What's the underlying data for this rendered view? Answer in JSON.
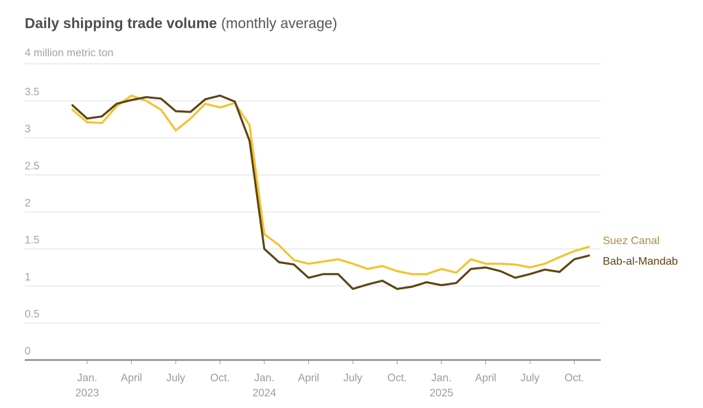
{
  "header": {
    "title": "Daily shipping trade volume",
    "subtitle": "(monthly average)"
  },
  "chart_data": {
    "type": "line",
    "title": "Daily shipping trade volume (monthly average)",
    "unit_label": "4 million metric ton",
    "ylabel": "million metric ton",
    "ylim": [
      0,
      4
    ],
    "y_tick_step": 0.5,
    "grid": true,
    "legend_position": "right-end-labels",
    "x": [
      "Dec. 2022",
      "Jan. 2023",
      "Feb. 2023",
      "March 2023",
      "April 2023",
      "May 2023",
      "June 2023",
      "July 2023",
      "Aug. 2023",
      "Sep. 2023",
      "Oct. 2023",
      "Nov. 2023",
      "Dec. 2023",
      "Jan. 2024",
      "Feb. 2024",
      "March 2024",
      "April 2024",
      "May 2024",
      "June 2024",
      "July 2024",
      "Aug. 2024",
      "Sep. 2024",
      "Oct. 2024",
      "Nov. 2024",
      "Dec. 2024",
      "Jan. 2025",
      "Feb. 2025",
      "March 2025",
      "April 2025",
      "May 2025",
      "June 2025",
      "July 2025",
      "Aug. 2025",
      "Sep. 2025",
      "Oct. 2025",
      "Nov. 2025"
    ],
    "series": [
      {
        "name": "Suez Canal",
        "color": "#F5C12B",
        "label_color": "#AF8D3D",
        "values": [
          3.38,
          3.21,
          3.2,
          3.43,
          3.57,
          3.5,
          3.38,
          3.1,
          3.26,
          3.46,
          3.41,
          3.47,
          3.17,
          1.7,
          1.55,
          1.35,
          1.3,
          1.33,
          1.36,
          1.3,
          1.23,
          1.27,
          1.2,
          1.16,
          1.16,
          1.23,
          1.18,
          1.36,
          1.3,
          1.3,
          1.29,
          1.25,
          1.3,
          1.39,
          1.47,
          1.53
        ]
      },
      {
        "name": "Bab-al-Mandab",
        "color": "#5E4312",
        "label_color": "#5E4312",
        "values": [
          3.44,
          3.26,
          3.29,
          3.46,
          3.51,
          3.55,
          3.53,
          3.36,
          3.35,
          3.52,
          3.57,
          3.49,
          2.96,
          1.5,
          1.32,
          1.29,
          1.11,
          1.16,
          1.16,
          0.96,
          1.02,
          1.07,
          0.96,
          0.99,
          1.05,
          1.01,
          1.04,
          1.23,
          1.25,
          1.2,
          1.11,
          1.16,
          1.22,
          1.19,
          1.36,
          1.41
        ]
      }
    ],
    "y_ticks": [
      {
        "value": 4.0,
        "label": ""
      },
      {
        "value": 3.5,
        "label": "3.5"
      },
      {
        "value": 3.0,
        "label": "3"
      },
      {
        "value": 2.5,
        "label": "2.5"
      },
      {
        "value": 2.0,
        "label": "2"
      },
      {
        "value": 1.5,
        "label": "1.5"
      },
      {
        "value": 1.0,
        "label": "1"
      },
      {
        "value": 0.5,
        "label": "0.5"
      },
      {
        "value": 0.0,
        "label": "0"
      }
    ],
    "x_ticks": [
      {
        "label": "Jan.",
        "year": "2023",
        "month_index": 1
      },
      {
        "label": "April",
        "year": "",
        "month_index": 4
      },
      {
        "label": "July",
        "year": "",
        "month_index": 7
      },
      {
        "label": "Oct.",
        "year": "",
        "month_index": 10
      },
      {
        "label": "Jan.",
        "year": "2024",
        "month_index": 13
      },
      {
        "label": "April",
        "year": "",
        "month_index": 16
      },
      {
        "label": "July",
        "year": "",
        "month_index": 19
      },
      {
        "label": "Oct.",
        "year": "",
        "month_index": 22
      },
      {
        "label": "Jan.",
        "year": "2025",
        "month_index": 25
      },
      {
        "label": "April",
        "year": "",
        "month_index": 28
      },
      {
        "label": "July",
        "year": "",
        "month_index": 31
      },
      {
        "label": "Oct.",
        "year": "",
        "month_index": 34
      }
    ]
  },
  "colors": {
    "gridline": "#dcdcdc",
    "zero_axis": "#808080",
    "tick_mark": "#999999",
    "title_text": "#4d4d4d",
    "axis_text": "#9b9b9b",
    "background": "#ffffff"
  }
}
